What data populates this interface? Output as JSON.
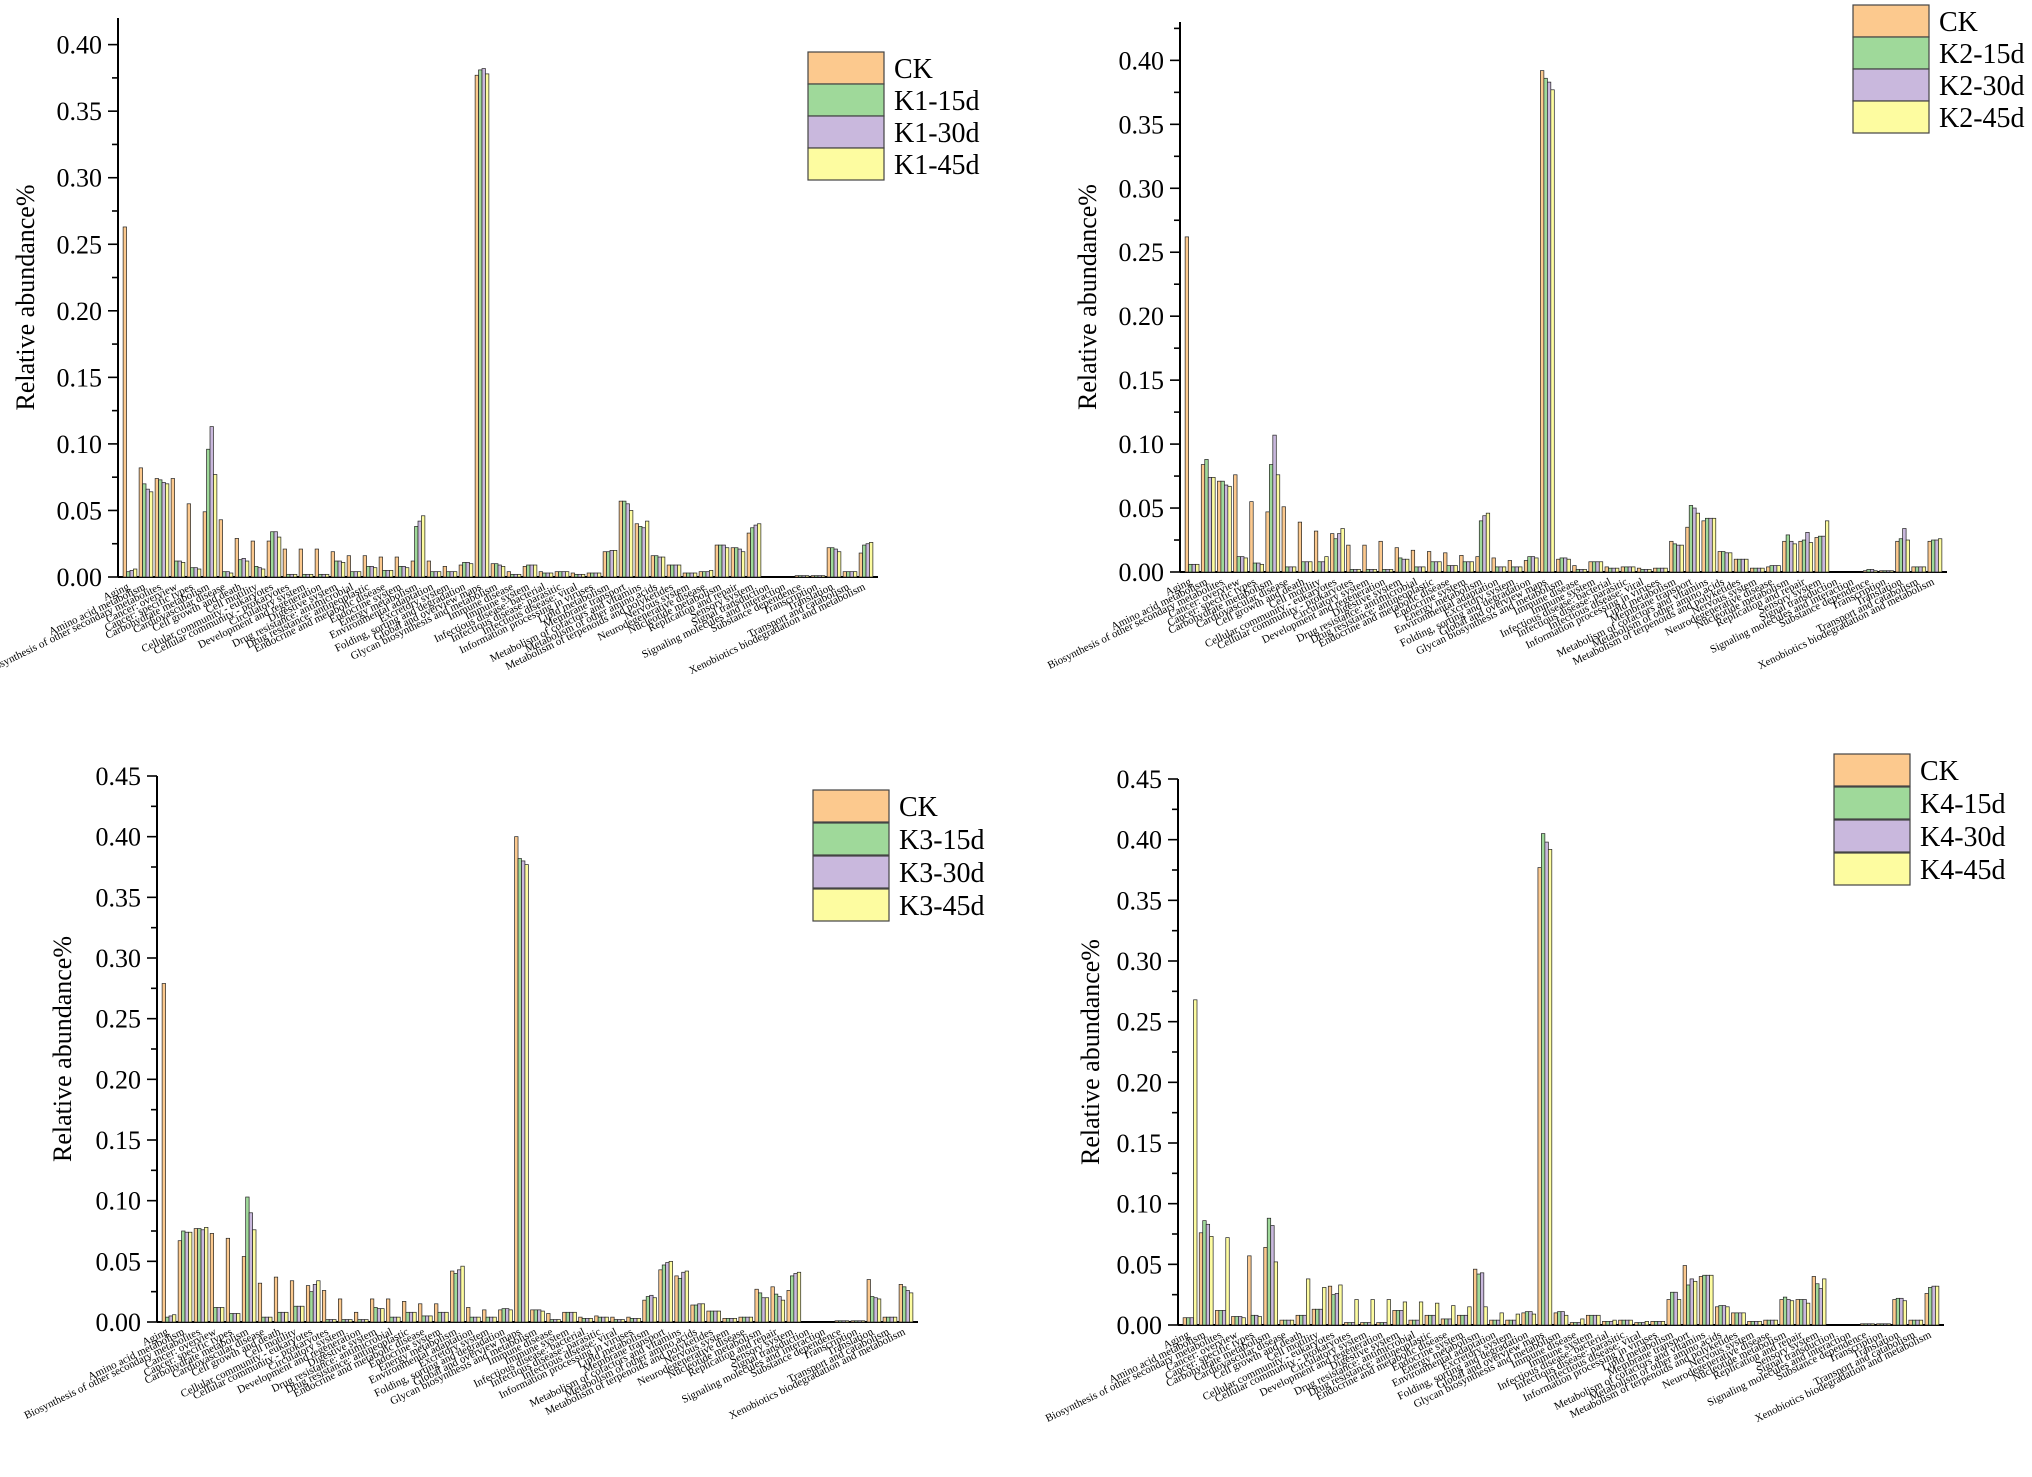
{
  "categories": [
    "Aging",
    "Amino acid metabolism",
    "Biosynthesis of other secondary metabolites",
    "Cancer: overview",
    "Cancer: specific types",
    "Carbohydrate metabolism",
    "Cardiovascular disease",
    "Cell growth and death",
    "Cell motility",
    "Cellular community - eukaryotes",
    "Cellular community - prokaryotes",
    "Circulatory system",
    "Development and regeneration",
    "Digestive system",
    "Drug resistance: antimicrobial",
    "Drug resistance: antineoplastic",
    "Endocrine and metabolic disease",
    "Endocrine system",
    "Energy metabolism",
    "Environmental adaptation",
    "Excretory system",
    "Folding, sorting and degradation",
    "Global and overview maps",
    "Glycan biosynthesis and metabolism",
    "Immune disease",
    "Immune system",
    "Infectious disease: bacterial",
    "Infectious disease: parasitic",
    "Infectious disease: viral",
    "Information processing in viruses",
    "Lipid metabolism",
    "Membrane transport",
    "Metabolism of cofactors and vitamins",
    "Metabolism of other amino acids",
    "Metabolism of terpenoids and polyketides",
    "Nervous system",
    "Neurodegenerative disease",
    "Nucleotide metabolism",
    "Replication and repair",
    "Sensory system",
    "Signal transduction",
    "Signaling molecules and interaction",
    "Substance dependence",
    "Transcription",
    "Translation",
    "Transport and catabolism",
    "Xenobiotics biodegradation and metabolism"
  ],
  "colors": {
    "ck": "#fcc98e",
    "d15": "#9fd99a",
    "d30": "#c9b8dd",
    "d45": "#fdfca0"
  },
  "chart_data": [
    {
      "type": "bar",
      "ylabel": "Relative abundance%",
      "ylim": [
        0,
        0.42
      ],
      "yticks": [
        0.0,
        0.05,
        0.1,
        0.15,
        0.2,
        0.25,
        0.3,
        0.35,
        0.4
      ],
      "legend": "top-right",
      "series": [
        {
          "name": "CK",
          "values": [
            0.263,
            0.082,
            0.074,
            0.074,
            0.055,
            0.049,
            0.043,
            0.029,
            0.027,
            0.027,
            0.021,
            0.021,
            0.021,
            0.019,
            0.016,
            0.016,
            0.015,
            0.015,
            0.012,
            0.012,
            0.008,
            0.009,
            0.377,
            0.01,
            0.004,
            0.008,
            0.004,
            0.004,
            0.003,
            0.003,
            0.019,
            0.057,
            0.04,
            0.016,
            0.009,
            0.003,
            0.004,
            0.024,
            0.022,
            0.033,
            0.0,
            0.0,
            0.001,
            0.001,
            0.022,
            0.004,
            0.018
          ]
        },
        {
          "name": "K1-15d",
          "values": [
            0.004,
            0.07,
            0.073,
            0.012,
            0.007,
            0.096,
            0.004,
            0.013,
            0.008,
            0.034,
            0.002,
            0.002,
            0.002,
            0.012,
            0.004,
            0.008,
            0.005,
            0.008,
            0.038,
            0.004,
            0.004,
            0.011,
            0.381,
            0.01,
            0.002,
            0.009,
            0.003,
            0.004,
            0.002,
            0.003,
            0.019,
            0.057,
            0.038,
            0.016,
            0.009,
            0.003,
            0.004,
            0.024,
            0.022,
            0.037,
            0.0,
            0.0,
            0.001,
            0.001,
            0.022,
            0.004,
            0.024
          ]
        },
        {
          "name": "K1-30d",
          "values": [
            0.005,
            0.066,
            0.071,
            0.012,
            0.007,
            0.113,
            0.004,
            0.014,
            0.007,
            0.034,
            0.002,
            0.002,
            0.002,
            0.012,
            0.004,
            0.008,
            0.005,
            0.008,
            0.042,
            0.004,
            0.004,
            0.011,
            0.382,
            0.009,
            0.002,
            0.009,
            0.003,
            0.004,
            0.002,
            0.003,
            0.02,
            0.055,
            0.037,
            0.015,
            0.009,
            0.003,
            0.004,
            0.024,
            0.021,
            0.039,
            0.0,
            0.0,
            0.001,
            0.001,
            0.021,
            0.004,
            0.025
          ]
        },
        {
          "name": "K1-45d",
          "values": [
            0.006,
            0.064,
            0.07,
            0.011,
            0.006,
            0.077,
            0.003,
            0.012,
            0.006,
            0.03,
            0.002,
            0.002,
            0.002,
            0.011,
            0.004,
            0.007,
            0.005,
            0.007,
            0.046,
            0.004,
            0.004,
            0.01,
            0.378,
            0.008,
            0.002,
            0.009,
            0.003,
            0.004,
            0.002,
            0.003,
            0.02,
            0.05,
            0.042,
            0.015,
            0.009,
            0.003,
            0.005,
            0.022,
            0.019,
            0.04,
            0.0,
            0.0,
            0.001,
            0.001,
            0.019,
            0.004,
            0.026
          ]
        }
      ]
    },
    {
      "type": "bar",
      "ylabel": "Relative abundance%",
      "ylim": [
        0,
        0.43
      ],
      "yticks": [
        0.0,
        0.05,
        0.1,
        0.15,
        0.2,
        0.25,
        0.3,
        0.35,
        0.4
      ],
      "legend": "top-right",
      "series": [
        {
          "name": "CK",
          "values": [
            0.262,
            0.084,
            0.071,
            0.076,
            0.055,
            0.047,
            0.051,
            0.039,
            0.032,
            0.03,
            0.021,
            0.021,
            0.024,
            0.019,
            0.017,
            0.016,
            0.015,
            0.013,
            0.012,
            0.011,
            0.009,
            0.009,
            0.392,
            0.01,
            0.005,
            0.008,
            0.004,
            0.004,
            0.003,
            0.003,
            0.024,
            0.035,
            0.04,
            0.016,
            0.01,
            0.003,
            0.004,
            0.024,
            0.024,
            0.027,
            0.0,
            0.0,
            0.001,
            0.001,
            0.024,
            0.004,
            0.024
          ]
        },
        {
          "name": "K2-15d",
          "values": [
            0.006,
            0.088,
            0.071,
            0.012,
            0.007,
            0.084,
            0.004,
            0.008,
            0.008,
            0.026,
            0.002,
            0.002,
            0.002,
            0.011,
            0.004,
            0.008,
            0.005,
            0.008,
            0.04,
            0.004,
            0.004,
            0.012,
            0.386,
            0.011,
            0.002,
            0.008,
            0.003,
            0.004,
            0.002,
            0.003,
            0.022,
            0.052,
            0.042,
            0.016,
            0.01,
            0.003,
            0.005,
            0.029,
            0.025,
            0.028,
            0.0,
            0.0,
            0.002,
            0.001,
            0.026,
            0.004,
            0.025
          ]
        },
        {
          "name": "K2-30d",
          "values": [
            0.006,
            0.074,
            0.068,
            0.012,
            0.007,
            0.107,
            0.004,
            0.008,
            0.008,
            0.03,
            0.002,
            0.002,
            0.002,
            0.01,
            0.004,
            0.008,
            0.005,
            0.008,
            0.044,
            0.004,
            0.004,
            0.012,
            0.383,
            0.011,
            0.002,
            0.008,
            0.003,
            0.004,
            0.002,
            0.003,
            0.021,
            0.05,
            0.042,
            0.015,
            0.01,
            0.003,
            0.005,
            0.024,
            0.031,
            0.028,
            0.0,
            0.0,
            0.002,
            0.001,
            0.034,
            0.004,
            0.025
          ]
        },
        {
          "name": "K2-45d",
          "values": [
            0.006,
            0.074,
            0.067,
            0.011,
            0.006,
            0.076,
            0.004,
            0.008,
            0.012,
            0.034,
            0.002,
            0.002,
            0.002,
            0.01,
            0.004,
            0.008,
            0.005,
            0.008,
            0.046,
            0.004,
            0.004,
            0.011,
            0.377,
            0.01,
            0.002,
            0.008,
            0.003,
            0.004,
            0.002,
            0.003,
            0.021,
            0.046,
            0.042,
            0.015,
            0.01,
            0.003,
            0.005,
            0.022,
            0.023,
            0.04,
            0.0,
            0.0,
            0.001,
            0.001,
            0.025,
            0.004,
            0.026
          ]
        }
      ]
    },
    {
      "type": "bar",
      "ylabel": "Relative abundance%",
      "ylim": [
        0,
        0.45
      ],
      "yticks": [
        0.0,
        0.05,
        0.1,
        0.15,
        0.2,
        0.25,
        0.3,
        0.35,
        0.4,
        0.45
      ],
      "legend": "top-right",
      "series": [
        {
          "name": "CK",
          "values": [
            0.279,
            0.067,
            0.077,
            0.073,
            0.069,
            0.054,
            0.032,
            0.037,
            0.034,
            0.03,
            0.026,
            0.019,
            0.008,
            0.019,
            0.019,
            0.017,
            0.015,
            0.015,
            0.042,
            0.012,
            0.01,
            0.01,
            0.4,
            0.01,
            0.007,
            0.008,
            0.004,
            0.005,
            0.004,
            0.004,
            0.018,
            0.043,
            0.038,
            0.014,
            0.009,
            0.003,
            0.004,
            0.027,
            0.029,
            0.026,
            0.0,
            0.0,
            0.001,
            0.001,
            0.035,
            0.004,
            0.031
          ]
        },
        {
          "name": "K3-15d",
          "values": [
            0.004,
            0.075,
            0.077,
            0.012,
            0.007,
            0.103,
            0.004,
            0.008,
            0.013,
            0.025,
            0.002,
            0.002,
            0.002,
            0.012,
            0.004,
            0.008,
            0.005,
            0.008,
            0.04,
            0.004,
            0.004,
            0.011,
            0.382,
            0.01,
            0.002,
            0.008,
            0.003,
            0.004,
            0.002,
            0.003,
            0.021,
            0.047,
            0.036,
            0.014,
            0.009,
            0.003,
            0.004,
            0.024,
            0.023,
            0.038,
            0.0,
            0.0,
            0.001,
            0.001,
            0.021,
            0.004,
            0.029
          ]
        },
        {
          "name": "K3-30d",
          "values": [
            0.005,
            0.074,
            0.076,
            0.012,
            0.007,
            0.09,
            0.004,
            0.008,
            0.013,
            0.031,
            0.002,
            0.002,
            0.002,
            0.011,
            0.004,
            0.008,
            0.005,
            0.008,
            0.043,
            0.004,
            0.004,
            0.011,
            0.38,
            0.01,
            0.002,
            0.008,
            0.003,
            0.004,
            0.002,
            0.003,
            0.022,
            0.049,
            0.041,
            0.015,
            0.009,
            0.003,
            0.004,
            0.02,
            0.021,
            0.04,
            0.0,
            0.0,
            0.001,
            0.001,
            0.02,
            0.004,
            0.026
          ]
        },
        {
          "name": "K3-45d",
          "values": [
            0.006,
            0.074,
            0.078,
            0.012,
            0.007,
            0.076,
            0.004,
            0.008,
            0.013,
            0.034,
            0.002,
            0.002,
            0.002,
            0.011,
            0.004,
            0.008,
            0.005,
            0.008,
            0.046,
            0.004,
            0.004,
            0.01,
            0.377,
            0.009,
            0.002,
            0.008,
            0.003,
            0.004,
            0.002,
            0.003,
            0.02,
            0.05,
            0.042,
            0.015,
            0.009,
            0.003,
            0.004,
            0.02,
            0.018,
            0.041,
            0.0,
            0.0,
            0.001,
            0.001,
            0.019,
            0.004,
            0.024
          ]
        }
      ]
    },
    {
      "type": "bar",
      "ylabel": "Relative abundance%",
      "ylim": [
        0,
        0.45
      ],
      "yticks": [
        0.0,
        0.05,
        0.1,
        0.15,
        0.2,
        0.25,
        0.3,
        0.35,
        0.4,
        0.45
      ],
      "legend": "top-right",
      "series": [
        {
          "name": "CK",
          "values": [
            0.006,
            0.076,
            0.012,
            0.007,
            0.057,
            0.064,
            0.004,
            0.008,
            0.013,
            0.032,
            0.002,
            0.002,
            0.002,
            0.012,
            0.004,
            0.008,
            0.005,
            0.008,
            0.046,
            0.004,
            0.004,
            0.01,
            0.377,
            0.01,
            0.002,
            0.008,
            0.003,
            0.004,
            0.002,
            0.003,
            0.021,
            0.049,
            0.04,
            0.015,
            0.01,
            0.003,
            0.004,
            0.021,
            0.021,
            0.04,
            0.0,
            0.0,
            0.001,
            0.001,
            0.021,
            0.004,
            0.026
          ]
        },
        {
          "name": "K4-15d",
          "values": [
            0.006,
            0.086,
            0.012,
            0.007,
            0.008,
            0.088,
            0.004,
            0.008,
            0.013,
            0.025,
            0.002,
            0.002,
            0.002,
            0.012,
            0.004,
            0.008,
            0.005,
            0.008,
            0.042,
            0.004,
            0.004,
            0.011,
            0.405,
            0.011,
            0.002,
            0.008,
            0.003,
            0.004,
            0.002,
            0.003,
            0.027,
            0.033,
            0.041,
            0.016,
            0.01,
            0.003,
            0.004,
            0.023,
            0.021,
            0.034,
            0.0,
            0.0,
            0.001,
            0.001,
            0.022,
            0.004,
            0.031
          ]
        },
        {
          "name": "K4-30d",
          "values": [
            0.006,
            0.083,
            0.012,
            0.007,
            0.008,
            0.082,
            0.004,
            0.008,
            0.013,
            0.026,
            0.002,
            0.002,
            0.002,
            0.012,
            0.004,
            0.008,
            0.005,
            0.008,
            0.043,
            0.004,
            0.004,
            0.011,
            0.398,
            0.011,
            0.002,
            0.008,
            0.003,
            0.004,
            0.002,
            0.003,
            0.027,
            0.038,
            0.041,
            0.016,
            0.01,
            0.003,
            0.004,
            0.021,
            0.021,
            0.03,
            0.0,
            0.0,
            0.001,
            0.001,
            0.022,
            0.004,
            0.032
          ]
        },
        {
          "name": "K4-45d",
          "values": [
            0.268,
            0.073,
            0.072,
            0.006,
            0.007,
            0.052,
            0.004,
            0.038,
            0.031,
            0.033,
            0.021,
            0.021,
            0.021,
            0.019,
            0.019,
            0.018,
            0.016,
            0.015,
            0.015,
            0.01,
            0.009,
            0.009,
            0.392,
            0.008,
            0.005,
            0.008,
            0.004,
            0.004,
            0.003,
            0.003,
            0.021,
            0.036,
            0.041,
            0.015,
            0.01,
            0.003,
            0.004,
            0.02,
            0.018,
            0.038,
            0.0,
            0.0,
            0.001,
            0.001,
            0.02,
            0.004,
            0.032
          ]
        }
      ]
    }
  ]
}
